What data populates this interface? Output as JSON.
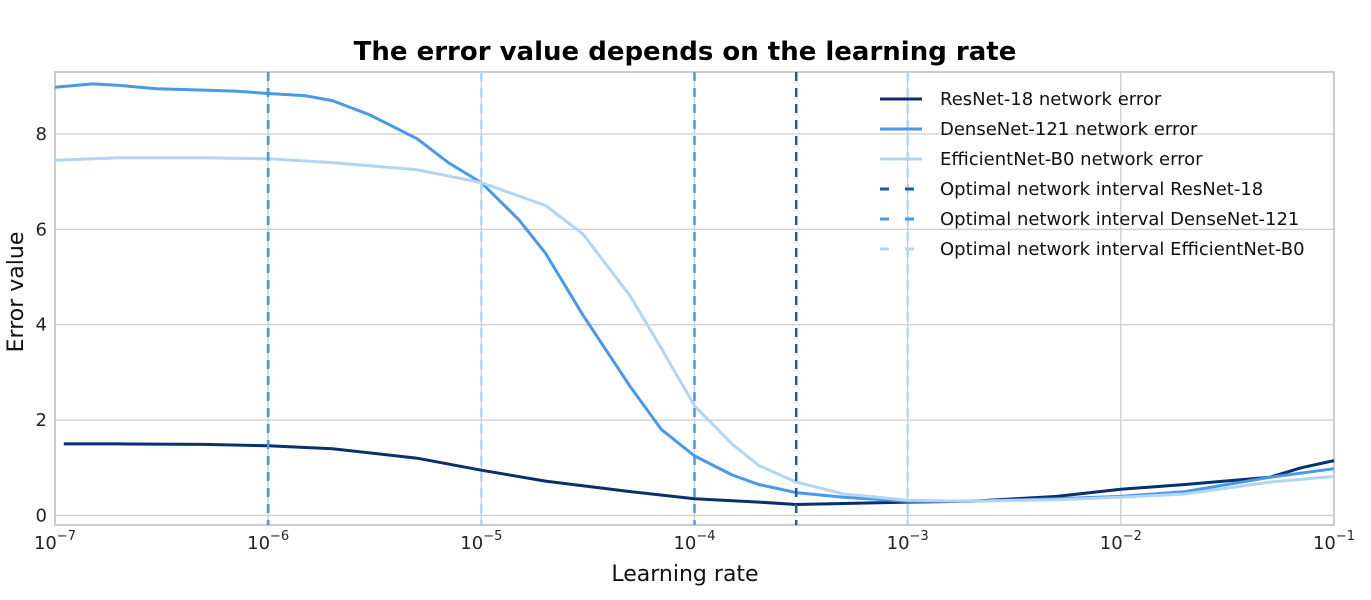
{
  "chart_data": {
    "type": "line",
    "title": "The error value depends on the learning rate",
    "xlabel": "Learning rate",
    "ylabel": "Error value",
    "xscale": "log",
    "xlim": [
      1e-07,
      0.1
    ],
    "ylim": [
      -0.2,
      9.3
    ],
    "xticks": [
      {
        "value": 1e-07,
        "base": "10",
        "exp": "−7"
      },
      {
        "value": 1e-06,
        "base": "10",
        "exp": "−6"
      },
      {
        "value": 1e-05,
        "base": "10",
        "exp": "−5"
      },
      {
        "value": 0.0001,
        "base": "10",
        "exp": "−4"
      },
      {
        "value": 0.001,
        "base": "10",
        "exp": "−3"
      },
      {
        "value": 0.01,
        "base": "10",
        "exp": "−2"
      },
      {
        "value": 0.1,
        "base": "10",
        "exp": "−1"
      }
    ],
    "yticks": [
      "0",
      "2",
      "4",
      "6",
      "8"
    ],
    "grid": true,
    "legend_position": "top-right",
    "series": [
      {
        "name": "ResNet-18 network error",
        "color": "#08306b",
        "x": [
          1.1e-07,
          2e-07,
          5e-07,
          1e-06,
          2e-06,
          5e-06,
          1e-05,
          2e-05,
          5e-05,
          0.0001,
          0.0002,
          0.0003,
          0.0005,
          0.001,
          0.002,
          0.005,
          0.01,
          0.02,
          0.05,
          0.07,
          0.1
        ],
        "y": [
          1.5,
          1.5,
          1.49,
          1.46,
          1.4,
          1.2,
          0.95,
          0.72,
          0.5,
          0.35,
          0.28,
          0.23,
          0.25,
          0.28,
          0.3,
          0.4,
          0.55,
          0.65,
          0.8,
          1.0,
          1.15
        ]
      },
      {
        "name": "DenseNet-121 network error",
        "color": "#4a98e6",
        "x": [
          1e-07,
          1.5e-07,
          2e-07,
          3e-07,
          5e-07,
          7e-07,
          1e-06,
          1.5e-06,
          2e-06,
          3e-06,
          5e-06,
          7e-06,
          1e-05,
          1.5e-05,
          2e-05,
          3e-05,
          5e-05,
          7e-05,
          0.0001,
          0.00015,
          0.0002,
          0.0003,
          0.0005,
          0.001,
          0.002,
          0.005,
          0.01,
          0.02,
          0.05,
          0.1
        ],
        "y": [
          8.98,
          9.05,
          9.02,
          8.95,
          8.92,
          8.9,
          8.85,
          8.8,
          8.7,
          8.4,
          7.9,
          7.4,
          6.98,
          6.2,
          5.5,
          4.2,
          2.7,
          1.8,
          1.25,
          0.85,
          0.65,
          0.48,
          0.38,
          0.3,
          0.3,
          0.35,
          0.4,
          0.5,
          0.8,
          0.98
        ]
      },
      {
        "name": "EfficientNet-B0 network error",
        "color": "#b3d5f3",
        "x": [
          1e-07,
          2e-07,
          5e-07,
          1e-06,
          2e-06,
          5e-06,
          1e-05,
          1.5e-05,
          2e-05,
          3e-05,
          5e-05,
          7e-05,
          0.0001,
          0.00015,
          0.0002,
          0.0003,
          0.0005,
          0.001,
          0.002,
          0.005,
          0.01,
          0.02,
          0.05,
          0.1
        ],
        "y": [
          7.45,
          7.5,
          7.5,
          7.48,
          7.4,
          7.25,
          6.98,
          6.7,
          6.5,
          5.9,
          4.6,
          3.5,
          2.3,
          1.5,
          1.05,
          0.7,
          0.45,
          0.32,
          0.3,
          0.33,
          0.38,
          0.45,
          0.7,
          0.82
        ]
      }
    ],
    "vlines": [
      {
        "name": "Optimal network interval ResNet-18",
        "color": "#1e5aa0",
        "x": [
          1e-06,
          0.0003
        ]
      },
      {
        "name": "Optimal network interval DenseNet-121",
        "color": "#4a98e6",
        "x": [
          1e-06,
          0.0001
        ]
      },
      {
        "name": "Optimal network interval EfficientNet-B0",
        "color": "#b3d5f3",
        "x": [
          1e-05,
          0.001
        ]
      }
    ]
  }
}
